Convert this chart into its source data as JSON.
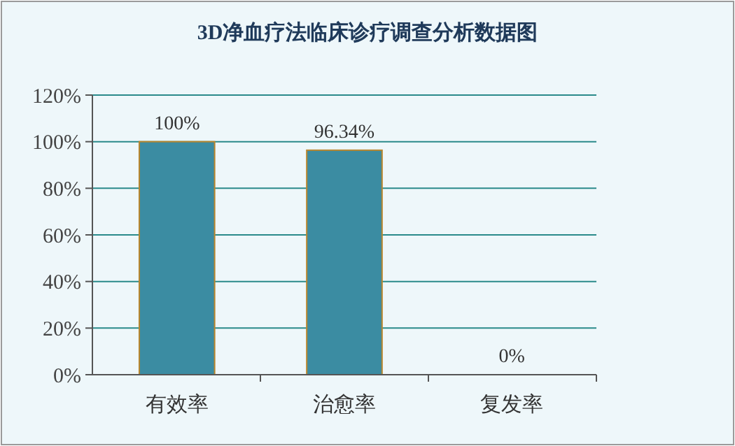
{
  "chart_data": {
    "type": "bar",
    "title": "3D净血疗法临床诊疗调查分析数据图",
    "categories": [
      "有效率",
      "治愈率",
      "复发率"
    ],
    "values": [
      100,
      96.34,
      0
    ],
    "value_labels": [
      "100%",
      "96.34%",
      "0%"
    ],
    "color": "#3b8ca2",
    "ylim": [
      0,
      120
    ],
    "yticks": [
      {
        "value": 0,
        "label": "0%"
      },
      {
        "value": 20,
        "label": "20%"
      },
      {
        "value": 40,
        "label": "40%"
      },
      {
        "value": 60,
        "label": "60%"
      },
      {
        "value": 80,
        "label": "80%"
      },
      {
        "value": 100,
        "label": "100%"
      },
      {
        "value": 120,
        "label": "120%"
      }
    ],
    "grid": "y"
  }
}
